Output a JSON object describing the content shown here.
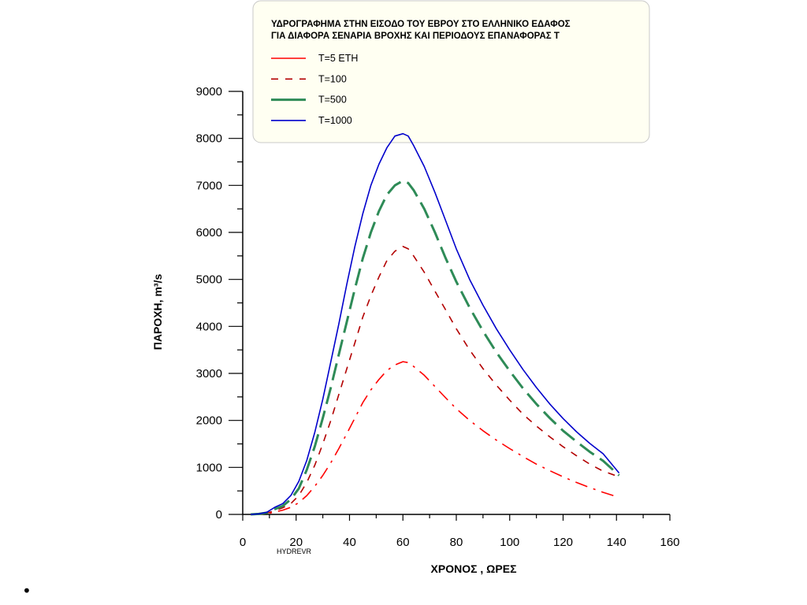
{
  "chart_data": {
    "type": "line",
    "title_lines": [
      "ΥΔΡΟΓΡΑΦΗΜΑ  ΣΤΗΝ ΕΙΣΟΔΟ ΤΟΥ ΕΒΡΟΥ ΣΤΟ ΕΛΛΗΝΙΚΟ ΕΔΑΦΟΣ",
      "ΓΙΑ ΔΙΑΦΟΡΑ  ΣΕΝΑΡΙΑ   ΒΡΟΧΗΣ  ΚΑΙ  ΠΕΡΙΟΔΟΥΣ ΕΠΑΝΑΦΟΡΑΣ  Τ"
    ],
    "xlabel": "ΧΡΟΝΟΣ   , ΩΡΕΣ",
    "ylabel": "ΠΑΡΟΧΗ, m³/s",
    "source_note": "HYDREVR",
    "xlim": [
      0,
      160
    ],
    "ylim": [
      0,
      9000
    ],
    "xticks": [
      0,
      20,
      40,
      60,
      80,
      100,
      120,
      140,
      160
    ],
    "yticks": [
      0,
      1000,
      2000,
      3000,
      4000,
      5000,
      6000,
      7000,
      8000,
      9000
    ],
    "grid": false,
    "legend_position": "top",
    "series": [
      {
        "name": "T=5 ETH",
        "color": "#ff0000",
        "style": "dashdot",
        "x": [
          3,
          6,
          9,
          12,
          15,
          18,
          21,
          24,
          27,
          30,
          33,
          36,
          39,
          42,
          45,
          48,
          51,
          54,
          57,
          60,
          62,
          64,
          68,
          72,
          76,
          80,
          85,
          90,
          95,
          100,
          105,
          110,
          115,
          120,
          125,
          130,
          135,
          141
        ],
        "y": [
          0,
          5,
          15,
          50,
          90,
          150,
          250,
          400,
          600,
          830,
          1100,
          1400,
          1720,
          2050,
          2380,
          2650,
          2870,
          3060,
          3180,
          3250,
          3230,
          3150,
          2960,
          2720,
          2480,
          2250,
          2000,
          1780,
          1580,
          1400,
          1230,
          1070,
          930,
          800,
          680,
          570,
          470,
          360
        ]
      },
      {
        "name": "T=100",
        "color": "#b30000",
        "style": "dash",
        "x": [
          3,
          6,
          9,
          12,
          15,
          18,
          21,
          24,
          27,
          30,
          33,
          36,
          39,
          42,
          45,
          48,
          51,
          54,
          57,
          60,
          62,
          64,
          68,
          72,
          76,
          80,
          85,
          90,
          95,
          100,
          105,
          110,
          115,
          120,
          125,
          130,
          135,
          141
        ],
        "y": [
          0,
          8,
          25,
          80,
          140,
          230,
          400,
          680,
          1050,
          1500,
          2000,
          2550,
          3100,
          3650,
          4200,
          4650,
          5050,
          5400,
          5600,
          5700,
          5650,
          5500,
          5150,
          4750,
          4350,
          3950,
          3500,
          3100,
          2750,
          2430,
          2130,
          1880,
          1650,
          1440,
          1250,
          1070,
          920,
          800
        ]
      },
      {
        "name": "T=500",
        "color": "#2e8b57",
        "style": "longdash",
        "x": [
          3,
          6,
          9,
          12,
          15,
          18,
          21,
          24,
          27,
          30,
          33,
          36,
          39,
          42,
          45,
          48,
          51,
          54,
          57,
          60,
          62,
          64,
          68,
          72,
          76,
          80,
          85,
          90,
          95,
          100,
          105,
          110,
          115,
          120,
          125,
          130,
          135,
          141
        ],
        "y": [
          0,
          10,
          35,
          110,
          180,
          320,
          550,
          950,
          1450,
          2050,
          2700,
          3400,
          4100,
          4800,
          5450,
          6000,
          6450,
          6800,
          7000,
          7100,
          7050,
          6900,
          6500,
          6000,
          5450,
          4950,
          4400,
          3900,
          3450,
          3050,
          2680,
          2350,
          2050,
          1780,
          1550,
          1330,
          1140,
          830
        ]
      },
      {
        "name": "T=1000",
        "color": "#0000cc",
        "style": "solid",
        "x": [
          3,
          6,
          9,
          12,
          15,
          18,
          21,
          24,
          27,
          30,
          33,
          36,
          39,
          42,
          45,
          48,
          51,
          54,
          57,
          60,
          62,
          64,
          68,
          72,
          76,
          80,
          85,
          90,
          95,
          100,
          105,
          110,
          115,
          120,
          125,
          130,
          135,
          141
        ],
        "y": [
          0,
          12,
          45,
          150,
          230,
          400,
          700,
          1150,
          1750,
          2450,
          3250,
          4050,
          4900,
          5700,
          6400,
          7000,
          7450,
          7800,
          8050,
          8100,
          8050,
          7850,
          7400,
          6850,
          6250,
          5650,
          5000,
          4450,
          3950,
          3500,
          3080,
          2700,
          2350,
          2040,
          1760,
          1510,
          1290,
          880
        ]
      }
    ]
  }
}
